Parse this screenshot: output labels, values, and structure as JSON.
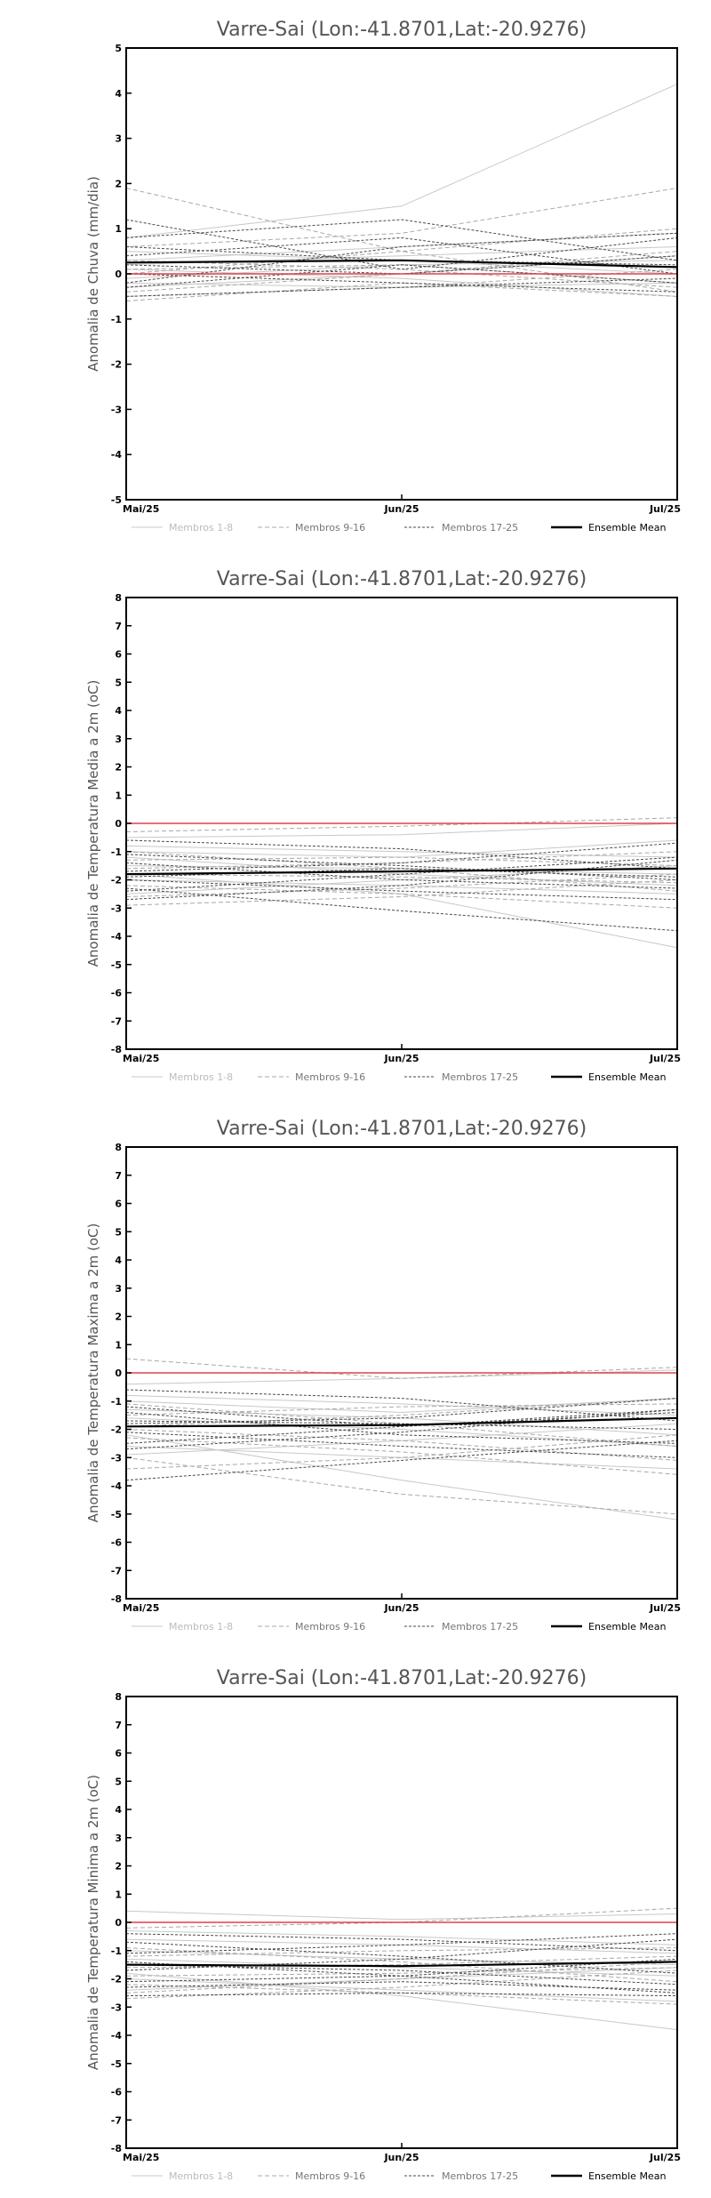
{
  "chart_data": [
    {
      "type": "line",
      "title": "Varre-Sai (Lon:-41.8701,Lat:-20.9276)",
      "ylabel": "Anomalia de Chuva (mm/dia)",
      "xlabel": "",
      "x": [
        "Mai/25",
        "Jun/25",
        "Jul/25"
      ],
      "ylim": [
        -5,
        5
      ],
      "yticks": [
        -5,
        -4,
        -3,
        -2,
        -1,
        0,
        1,
        2,
        3,
        4,
        5
      ],
      "legend": [
        "Membros 1-8",
        "Membros 9-16",
        "Membros 17-25",
        "Ensemble Mean"
      ],
      "legend_position": "bottom",
      "grid": false,
      "series": [
        {
          "group": 0,
          "values": [
            0.8,
            1.5,
            4.2
          ]
        },
        {
          "group": 0,
          "values": [
            0.3,
            0.6,
            0.9
          ]
        },
        {
          "group": 0,
          "values": [
            -0.1,
            0.2,
            0.3
          ]
        },
        {
          "group": 0,
          "values": [
            0.1,
            -0.1,
            -0.5
          ]
        },
        {
          "group": 0,
          "values": [
            0.5,
            0.3,
            0.0
          ]
        },
        {
          "group": 0,
          "values": [
            -0.3,
            0.0,
            0.4
          ]
        },
        {
          "group": 0,
          "values": [
            0.2,
            0.4,
            0.6
          ]
        },
        {
          "group": 0,
          "values": [
            -0.2,
            -0.3,
            -0.2
          ]
        },
        {
          "group": 1,
          "values": [
            1.9,
            0.5,
            -0.4
          ]
        },
        {
          "group": 1,
          "values": [
            0.6,
            0.9,
            1.9
          ]
        },
        {
          "group": 1,
          "values": [
            0.0,
            0.5,
            1.0
          ]
        },
        {
          "group": 1,
          "values": [
            -0.5,
            -0.3,
            0.1
          ]
        },
        {
          "group": 1,
          "values": [
            0.3,
            0.1,
            -0.3
          ]
        },
        {
          "group": 1,
          "values": [
            -0.4,
            0.0,
            0.5
          ]
        },
        {
          "group": 1,
          "values": [
            0.1,
            0.2,
            -0.2
          ]
        },
        {
          "group": 1,
          "values": [
            -0.6,
            -0.2,
            -0.5
          ]
        },
        {
          "group": 2,
          "values": [
            1.2,
            0.1,
            0.8
          ]
        },
        {
          "group": 2,
          "values": [
            0.8,
            1.2,
            0.3
          ]
        },
        {
          "group": 2,
          "values": [
            -0.2,
            0.6,
            0.9
          ]
        },
        {
          "group": 2,
          "values": [
            0.4,
            0.8,
            0.0
          ]
        },
        {
          "group": 2,
          "values": [
            -0.5,
            -0.3,
            -0.1
          ]
        },
        {
          "group": 2,
          "values": [
            0.0,
            -0.2,
            -0.4
          ]
        },
        {
          "group": 2,
          "values": [
            0.6,
            0.3,
            0.2
          ]
        },
        {
          "group": 2,
          "values": [
            -0.3,
            0.2,
            -0.2
          ]
        },
        {
          "group": 2,
          "values": [
            0.2,
            0.0,
            0.4
          ]
        },
        {
          "group": 3,
          "values": [
            0.25,
            0.3,
            0.15
          ]
        },
        {
          "group": 4,
          "values": [
            0.0,
            0.0,
            0.0
          ]
        }
      ]
    },
    {
      "type": "line",
      "title": "Varre-Sai (Lon:-41.8701,Lat:-20.9276)",
      "ylabel": "Anomalia de Temperatura Media a 2m (oC)",
      "xlabel": "",
      "x": [
        "Mai/25",
        "Jun/25",
        "Jul/25"
      ],
      "ylim": [
        -8,
        8
      ],
      "yticks": [
        -8,
        -7,
        -6,
        -5,
        -4,
        -3,
        -2,
        -1,
        0,
        1,
        2,
        3,
        4,
        5,
        6,
        7,
        8
      ],
      "legend": [
        "Membros 1-8",
        "Membros 9-16",
        "Membros 17-25",
        "Ensemble Mean"
      ],
      "legend_position": "bottom",
      "grid": false,
      "series": [
        {
          "group": 0,
          "values": [
            -1.8,
            -2.5,
            -4.4
          ]
        },
        {
          "group": 0,
          "values": [
            -1.0,
            -1.2,
            -0.6
          ]
        },
        {
          "group": 0,
          "values": [
            -0.5,
            -0.4,
            0.0
          ]
        },
        {
          "group": 0,
          "values": [
            -2.0,
            -2.2,
            -2.5
          ]
        },
        {
          "group": 0,
          "values": [
            -1.5,
            -1.6,
            -1.8
          ]
        },
        {
          "group": 0,
          "values": [
            -2.5,
            -2.0,
            -1.5
          ]
        },
        {
          "group": 0,
          "values": [
            -1.2,
            -1.8,
            -2.2
          ]
        },
        {
          "group": 0,
          "values": [
            -0.8,
            -1.0,
            -1.2
          ]
        },
        {
          "group": 1,
          "values": [
            -2.9,
            -2.6,
            -2.0
          ]
        },
        {
          "group": 1,
          "values": [
            -0.3,
            -0.1,
            0.2
          ]
        },
        {
          "group": 1,
          "values": [
            -1.6,
            -1.4,
            -1.0
          ]
        },
        {
          "group": 1,
          "values": [
            -2.2,
            -2.5,
            -3.0
          ]
        },
        {
          "group": 1,
          "values": [
            -1.0,
            -1.6,
            -2.4
          ]
        },
        {
          "group": 1,
          "values": [
            -1.8,
            -1.9,
            -2.1
          ]
        },
        {
          "group": 1,
          "values": [
            -2.6,
            -2.3,
            -1.8
          ]
        },
        {
          "group": 1,
          "values": [
            -1.3,
            -1.2,
            -1.5
          ]
        },
        {
          "group": 2,
          "values": [
            -2.3,
            -3.1,
            -3.8
          ]
        },
        {
          "group": 2,
          "values": [
            -1.1,
            -1.5,
            -2.0
          ]
        },
        {
          "group": 2,
          "values": [
            -2.7,
            -2.2,
            -1.3
          ]
        },
        {
          "group": 2,
          "values": [
            -1.7,
            -1.4,
            -0.7
          ]
        },
        {
          "group": 2,
          "values": [
            -0.6,
            -0.9,
            -1.6
          ]
        },
        {
          "group": 2,
          "values": [
            -2.0,
            -2.4,
            -2.7
          ]
        },
        {
          "group": 2,
          "values": [
            -1.4,
            -2.0,
            -2.3
          ]
        },
        {
          "group": 2,
          "values": [
            -2.4,
            -1.8,
            -1.2
          ]
        },
        {
          "group": 2,
          "values": [
            -1.9,
            -1.6,
            -1.9
          ]
        },
        {
          "group": 3,
          "values": [
            -1.8,
            -1.7,
            -1.6
          ]
        },
        {
          "group": 4,
          "values": [
            0.0,
            0.0,
            0.0
          ]
        }
      ]
    },
    {
      "type": "line",
      "title": "Varre-Sai (Lon:-41.8701,Lat:-20.9276)",
      "ylabel": "Anomalia de Temperatura Maxima a 2m (oC)",
      "xlabel": "",
      "x": [
        "Mai/25",
        "Jun/25",
        "Jul/25"
      ],
      "ylim": [
        -8,
        8
      ],
      "yticks": [
        -8,
        -7,
        -6,
        -5,
        -4,
        -3,
        -2,
        -1,
        0,
        1,
        2,
        3,
        4,
        5,
        6,
        7,
        8
      ],
      "legend": [
        "Membros 1-8",
        "Membros 9-16",
        "Membros 17-25",
        "Ensemble Mean"
      ],
      "legend_position": "bottom",
      "grid": false,
      "series": [
        {
          "group": 0,
          "values": [
            -2.2,
            -3.8,
            -5.2
          ]
        },
        {
          "group": 0,
          "values": [
            -1.0,
            -1.4,
            -0.9
          ]
        },
        {
          "group": 0,
          "values": [
            -0.4,
            -0.2,
            0.1
          ]
        },
        {
          "group": 0,
          "values": [
            -2.6,
            -3.0,
            -3.4
          ]
        },
        {
          "group": 0,
          "values": [
            -1.6,
            -2.0,
            -2.6
          ]
        },
        {
          "group": 0,
          "values": [
            -2.9,
            -2.4,
            -1.8
          ]
        },
        {
          "group": 0,
          "values": [
            -1.3,
            -1.6,
            -2.2
          ]
        },
        {
          "group": 0,
          "values": [
            -0.8,
            -1.1,
            -1.5
          ]
        },
        {
          "group": 1,
          "values": [
            -3.0,
            -4.3,
            -5.0
          ]
        },
        {
          "group": 1,
          "values": [
            0.5,
            -0.2,
            0.2
          ]
        },
        {
          "group": 1,
          "values": [
            -1.9,
            -1.5,
            -0.9
          ]
        },
        {
          "group": 1,
          "values": [
            -2.3,
            -2.8,
            -3.6
          ]
        },
        {
          "group": 1,
          "values": [
            -1.1,
            -1.8,
            -2.6
          ]
        },
        {
          "group": 1,
          "values": [
            -3.4,
            -3.0,
            -2.2
          ]
        },
        {
          "group": 1,
          "values": [
            -1.5,
            -1.2,
            -1.1
          ]
        },
        {
          "group": 1,
          "values": [
            -2.0,
            -2.4,
            -3.1
          ]
        },
        {
          "group": 2,
          "values": [
            -3.8,
            -3.1,
            -2.4
          ]
        },
        {
          "group": 2,
          "values": [
            -1.2,
            -1.9,
            -1.4
          ]
        },
        {
          "group": 2,
          "values": [
            -2.7,
            -2.1,
            -1.3
          ]
        },
        {
          "group": 2,
          "values": [
            -1.8,
            -1.6,
            -0.9
          ]
        },
        {
          "group": 2,
          "values": [
            -0.6,
            -0.9,
            -1.7
          ]
        },
        {
          "group": 2,
          "values": [
            -2.1,
            -2.6,
            -3.0
          ]
        },
        {
          "group": 2,
          "values": [
            -1.4,
            -2.2,
            -2.5
          ]
        },
        {
          "group": 2,
          "values": [
            -2.5,
            -1.9,
            -1.3
          ]
        },
        {
          "group": 2,
          "values": [
            -1.7,
            -1.8,
            -2.0
          ]
        },
        {
          "group": 3,
          "values": [
            -1.9,
            -1.85,
            -1.6
          ]
        },
        {
          "group": 4,
          "values": [
            0.0,
            0.0,
            0.0
          ]
        }
      ]
    },
    {
      "type": "line",
      "title": "Varre-Sai (Lon:-41.8701,Lat:-20.9276)",
      "ylabel": "Anomalia de Temperatura Minima a 2m (oC)",
      "xlabel": "",
      "x": [
        "Mai/25",
        "Jun/25",
        "Jul/25"
      ],
      "ylim": [
        -8,
        8
      ],
      "yticks": [
        -8,
        -7,
        -6,
        -5,
        -4,
        -3,
        -2,
        -1,
        0,
        1,
        2,
        3,
        4,
        5,
        6,
        7,
        8
      ],
      "legend": [
        "Membros 1-8",
        "Membros 9-16",
        "Membros 17-25",
        "Ensemble Mean"
      ],
      "legend_position": "bottom",
      "grid": false,
      "series": [
        {
          "group": 0,
          "values": [
            -1.8,
            -2.6,
            -3.8
          ]
        },
        {
          "group": 0,
          "values": [
            0.4,
            0.1,
            0.3
          ]
        },
        {
          "group": 0,
          "values": [
            -0.6,
            -0.8,
            -1.1
          ]
        },
        {
          "group": 0,
          "values": [
            -2.0,
            -2.4,
            -2.8
          ]
        },
        {
          "group": 0,
          "values": [
            -1.3,
            -1.6,
            -1.9
          ]
        },
        {
          "group": 0,
          "values": [
            -2.4,
            -2.0,
            -1.6
          ]
        },
        {
          "group": 0,
          "values": [
            -1.0,
            -1.3,
            -1.5
          ]
        },
        {
          "group": 0,
          "values": [
            -0.3,
            -0.5,
            -0.8
          ]
        },
        {
          "group": 1,
          "values": [
            -2.7,
            -2.3,
            -1.7
          ]
        },
        {
          "group": 1,
          "values": [
            -0.2,
            0.0,
            0.5
          ]
        },
        {
          "group": 1,
          "values": [
            -1.6,
            -1.5,
            -1.2
          ]
        },
        {
          "group": 1,
          "values": [
            -2.2,
            -2.5,
            -2.9
          ]
        },
        {
          "group": 1,
          "values": [
            -0.9,
            -1.4,
            -2.1
          ]
        },
        {
          "group": 1,
          "values": [
            -1.9,
            -1.8,
            -1.6
          ]
        },
        {
          "group": 1,
          "values": [
            -2.5,
            -2.0,
            -1.4
          ]
        },
        {
          "group": 1,
          "values": [
            -1.2,
            -1.0,
            -0.9
          ]
        },
        {
          "group": 2,
          "values": [
            -2.6,
            -2.5,
            -2.6
          ]
        },
        {
          "group": 2,
          "values": [
            -0.4,
            -0.6,
            -1.0
          ]
        },
        {
          "group": 2,
          "values": [
            -1.7,
            -1.3,
            -0.6
          ]
        },
        {
          "group": 2,
          "values": [
            -2.1,
            -1.9,
            -1.3
          ]
        },
        {
          "group": 2,
          "values": [
            -0.7,
            -1.2,
            -1.8
          ]
        },
        {
          "group": 2,
          "values": [
            -1.5,
            -1.7,
            -2.2
          ]
        },
        {
          "group": 2,
          "values": [
            -2.3,
            -2.1,
            -2.4
          ]
        },
        {
          "group": 2,
          "values": [
            -1.1,
            -0.8,
            -0.4
          ]
        },
        {
          "group": 2,
          "values": [
            -1.4,
            -1.9,
            -2.5
          ]
        },
        {
          "group": 3,
          "values": [
            -1.5,
            -1.55,
            -1.4
          ]
        },
        {
          "group": 4,
          "values": [
            0.0,
            0.0,
            0.0
          ]
        }
      ]
    }
  ],
  "style": {
    "axis_color": "#000000",
    "title_color": "#555555",
    "label_color": "#555555",
    "zero_line_color": "#e0404a",
    "group_colors": [
      "#c8c8c8",
      "#a8a8a8",
      "#4a4a4a",
      "#000000",
      "#e0404a"
    ]
  }
}
